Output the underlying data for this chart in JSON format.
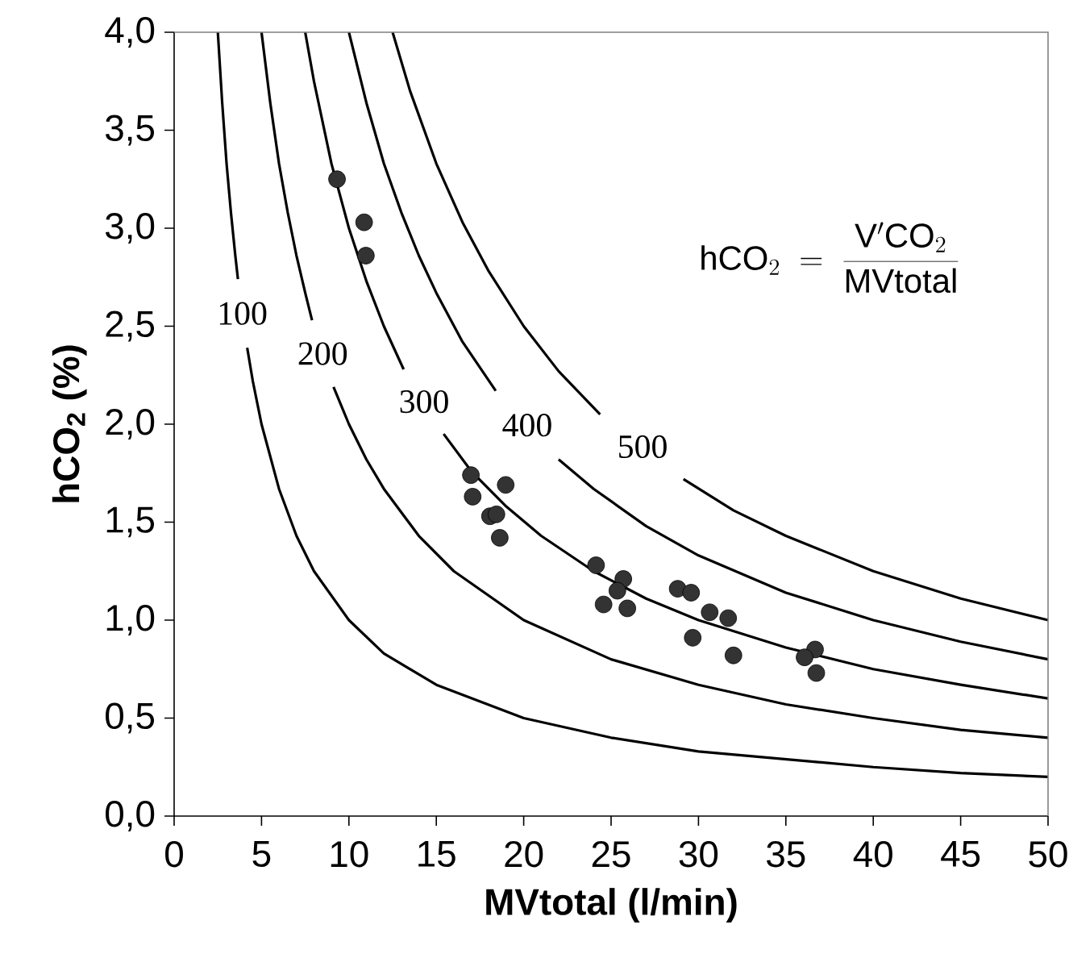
{
  "chart_data": {
    "type": "line",
    "xlabel": "MVtotal (l/min)",
    "ylabel": "hCO$_{2}$ (%)",
    "xlim": [
      0,
      50
    ],
    "ylim": [
      0,
      4
    ],
    "xticks": [
      0,
      5,
      10,
      15,
      20,
      25,
      30,
      35,
      40,
      45,
      50
    ],
    "yticks": [
      {
        "value": 0,
        "label": "0,0"
      },
      {
        "value": 0.5,
        "label": "0,5"
      },
      {
        "value": 1,
        "label": "1,0"
      },
      {
        "value": 1.5,
        "label": "1,5"
      },
      {
        "value": 2,
        "label": "2,0"
      },
      {
        "value": 2.5,
        "label": "2,5"
      },
      {
        "value": 3,
        "label": "3,0"
      },
      {
        "value": 3.5,
        "label": "3,5"
      },
      {
        "value": 4,
        "label": "4,0"
      }
    ],
    "series": [
      {
        "color": "#000000",
        "x": [
          2.5,
          2.75,
          3,
          3.25,
          3.5,
          3.65,
          3.9,
          4.18,
          4.5,
          5,
          6,
          7,
          8,
          10,
          12,
          15,
          20,
          25,
          30,
          35,
          40,
          45,
          50
        ],
        "values": [
          4.0,
          3.64,
          3.33,
          3.08,
          2.86,
          2.74,
          null,
          2.39,
          2.22,
          2.0,
          1.67,
          1.43,
          1.25,
          1.0,
          0.83,
          0.67,
          0.5,
          0.4,
          0.33,
          0.29,
          0.25,
          0.22,
          0.2
        ]
      },
      {
        "color": "#000000",
        "x": [
          5,
          5.5,
          6,
          6.5,
          7,
          7.5,
          7.89,
          8.5,
          9.12,
          10,
          11,
          12,
          14,
          16,
          20,
          25,
          30,
          35,
          40,
          45,
          50
        ],
        "values": [
          4.0,
          3.64,
          3.33,
          3.08,
          2.86,
          2.67,
          2.53,
          null,
          2.19,
          2.0,
          1.82,
          1.67,
          1.43,
          1.25,
          1.0,
          0.8,
          0.67,
          0.57,
          0.5,
          0.44,
          0.4
        ]
      },
      {
        "color": "#000000",
        "x": [
          7.5,
          8,
          9,
          10,
          11,
          12,
          13.13,
          14.3,
          15.42,
          17,
          19,
          21,
          24,
          27,
          30,
          35,
          40,
          45,
          50
        ],
        "values": [
          4.0,
          3.75,
          3.33,
          3.0,
          2.73,
          2.5,
          2.28,
          null,
          1.95,
          1.76,
          1.58,
          1.43,
          1.25,
          1.11,
          1.0,
          0.86,
          0.75,
          0.67,
          0.6
        ]
      },
      {
        "color": "#000000",
        "x": [
          10,
          11,
          12,
          13,
          14,
          15,
          16.5,
          18.4,
          20.2,
          22,
          24,
          27,
          30,
          35,
          40,
          45,
          50
        ],
        "values": [
          4.0,
          3.64,
          3.33,
          3.08,
          2.86,
          2.67,
          2.42,
          2.17,
          null,
          1.82,
          1.67,
          1.48,
          1.33,
          1.14,
          1.0,
          0.89,
          0.8
        ]
      },
      {
        "color": "#000000",
        "x": [
          12.5,
          13.5,
          15,
          16.5,
          18,
          20,
          22,
          24.37,
          26.8,
          29.14,
          32,
          35,
          40,
          45,
          50
        ],
        "values": [
          4.0,
          3.7,
          3.33,
          3.03,
          2.78,
          2.5,
          2.27,
          2.05,
          null,
          1.72,
          1.56,
          1.43,
          1.25,
          1.11,
          1.0
        ]
      },
      {
        "type": "scatter",
        "color": "#333333",
        "marker": "circle",
        "x": [
          9.32,
          10.87,
          10.97,
          16.98,
          17.08,
          18.97,
          18.07,
          18.44,
          18.63,
          24.14,
          25.7,
          25.36,
          24.57,
          25.93,
          28.81,
          29.58,
          30.64,
          31.7,
          29.67,
          32.0,
          36.67,
          36.07,
          36.74
        ],
        "values": [
          3.25,
          3.03,
          2.86,
          1.74,
          1.63,
          1.69,
          1.53,
          1.54,
          1.42,
          1.28,
          1.21,
          1.15,
          1.08,
          1.06,
          1.16,
          1.14,
          1.04,
          1.01,
          0.91,
          0.82,
          0.85,
          0.81,
          0.73
        ]
      }
    ],
    "annotations": [
      "100",
      "200",
      "300",
      "400",
      "500",
      "\\mathrm{hCO}_{2} \\;=\\; \\frac{\\mathrm{V'CO}_{2}}{\\mathrm{MVtotal}}"
    ]
  }
}
